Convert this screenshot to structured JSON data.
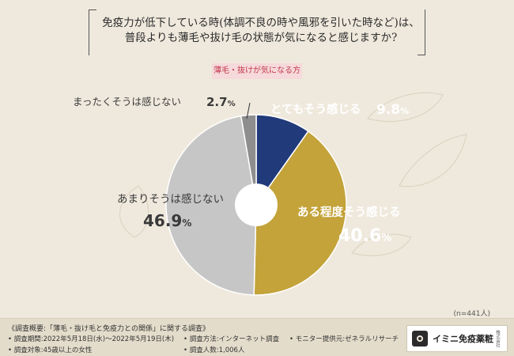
{
  "title_line1": "免疫力が低下している時(体調不良の時や風邪を引いた時など)は、",
  "title_line2": "普段よりも薄毛や抜け毛の状態が気になると感じますか?",
  "subtitle": "薄毛・抜けが気になる方",
  "sample_size": "(n=441人)",
  "chart_data": {
    "type": "pie",
    "title": "免疫力が低下している時(体調不良の時や風邪を引いた時など)は、普段よりも薄毛や抜け毛の状態が気になると感じますか?",
    "subtitle": "薄毛・抜けが気になる方",
    "donut": true,
    "slices": [
      {
        "label": "とてもそう感じる",
        "value": 9.8,
        "value_text": "9.8",
        "color": "#213a7a"
      },
      {
        "label": "ある程度そう感じる",
        "value": 40.6,
        "value_text": "40.6",
        "color": "#c3a33a"
      },
      {
        "label": "あまりそうは感じない",
        "value": 46.9,
        "value_text": "46.9",
        "color": "#c6c6c6"
      },
      {
        "label": "まったくそうは感じない",
        "value": 2.7,
        "value_text": "2.7",
        "color": "#8e8e8e"
      }
    ],
    "unit": "%"
  },
  "footer": {
    "title": "《調査概要:「薄毛・抜け毛と免疫力との関係」に関する調査》",
    "period": "• 調査期間:2022年5月18日(水)〜2022年5月19日(木)",
    "method": "• 調査方法:インターネット調査",
    "provider": "• モニター提供元:ゼネラルリサーチ",
    "target": "• 調査対象:45歳以上の女性",
    "count": "• 調査人数:1,006人"
  },
  "logo": {
    "name": "イミニ免疫薬粧",
    "sub": "株式会社"
  }
}
